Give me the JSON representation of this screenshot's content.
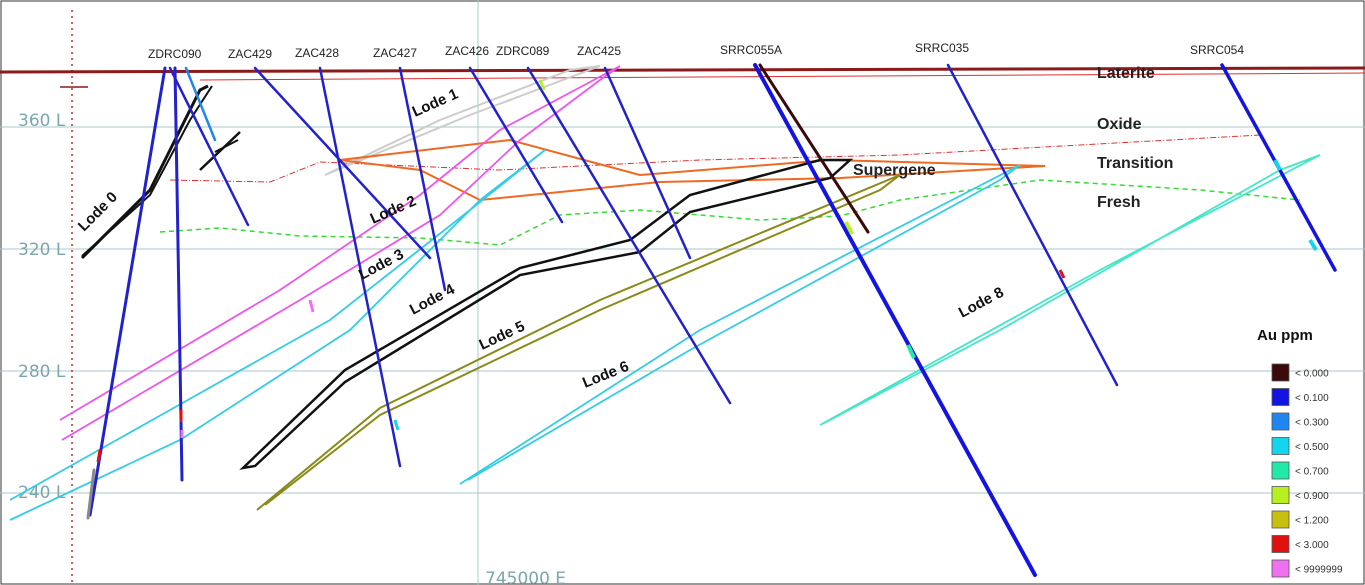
{
  "levels": [
    "360 L",
    "320 L",
    "280 L",
    "240 L"
  ],
  "easting": "745000 E",
  "drillholes": [
    "ZDRC090",
    "ZAC429",
    "ZAC428",
    "ZAC427",
    "ZAC426",
    "ZDRC089",
    "ZAC425",
    "SRRC055A",
    "SRRC035",
    "SRRC054"
  ],
  "lodes": [
    "Lode 0",
    "Lode 1",
    "Lode 2",
    "Lode 3",
    "Lode 4",
    "Lode 5",
    "Lode 6",
    "Lode 8"
  ],
  "zones": [
    "Laterite",
    "Oxide",
    "Transition",
    "Fresh",
    "Supergene"
  ],
  "legend": {
    "title": "Au ppm",
    "items": [
      {
        "label": "< 0.000",
        "color": "#3a0a0a"
      },
      {
        "label": "< 0.100",
        "color": "#1414e0"
      },
      {
        "label": "< 0.300",
        "color": "#1f86f0"
      },
      {
        "label": "< 0.500",
        "color": "#14d4ee"
      },
      {
        "label": "< 0.700",
        "color": "#22e8a8"
      },
      {
        "label": "< 0.900",
        "color": "#b6f020"
      },
      {
        "label": "< 1.200",
        "color": "#c8c010"
      },
      {
        "label": "< 3.000",
        "color": "#e01010"
      },
      {
        "label": "< 9999999",
        "color": "#f070f0"
      }
    ]
  },
  "colors": {
    "grid": "#a9c9c9",
    "topography": "#8b1a1a",
    "oxide_boundary": "#e03030",
    "fresh_boundary": "#33dd33",
    "lode0": "#111111",
    "lode1": "#cccccc",
    "lode2": "#ee6a22",
    "lode3": "#ee55ee",
    "lode3b": "#33cce6",
    "lode4": "#111111",
    "lode5": "#8a8a1a",
    "lode6": "#33cce6",
    "lode8": "#44e6c8",
    "hole": "#2222cc"
  }
}
